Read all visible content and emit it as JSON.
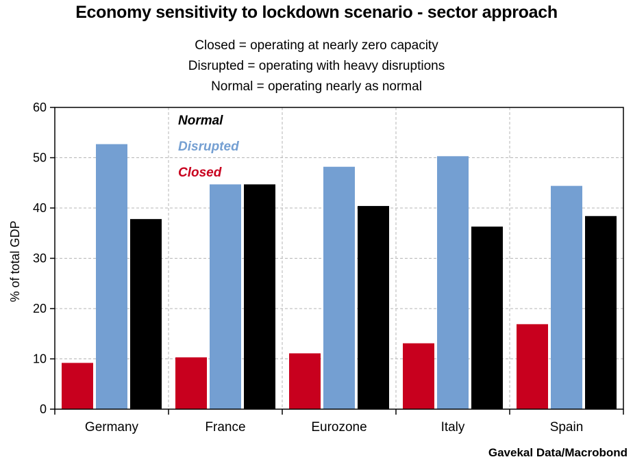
{
  "title": "Economy sensitivity to lockdown scenario - sector approach",
  "subtitle_lines": [
    "Closed = operating at nearly zero capacity",
    "Disrupted = operating with heavy disruptions",
    "Normal = operating nearly as normal"
  ],
  "source": "Gavekal Data/Macrobond",
  "colors": {
    "Closed": "#c8001e",
    "Disrupted": "#749fd2",
    "Normal": "#000000"
  },
  "chart_data": {
    "type": "bar",
    "categories": [
      "Germany",
      "France",
      "Eurozone",
      "Italy",
      "Spain"
    ],
    "series": [
      {
        "name": "Closed",
        "values": [
          9.2,
          10.3,
          11.1,
          13.1,
          16.9
        ]
      },
      {
        "name": "Disrupted",
        "values": [
          52.7,
          44.7,
          48.2,
          50.3,
          44.4
        ]
      },
      {
        "name": "Normal",
        "values": [
          37.8,
          44.7,
          40.4,
          36.3,
          38.4
        ]
      }
    ],
    "legend_order": [
      "Normal",
      "Disrupted",
      "Closed"
    ],
    "legend_position": "top-left",
    "ylabel": "% of total GDP",
    "xlabel": "",
    "ylim": [
      0,
      60
    ],
    "yticks": [
      0,
      10,
      20,
      30,
      40,
      50,
      60
    ],
    "grid": true
  }
}
